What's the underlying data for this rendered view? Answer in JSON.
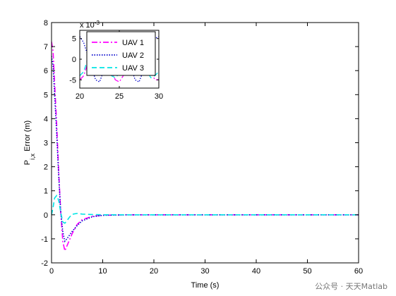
{
  "chart_data": [
    {
      "type": "line",
      "title": "",
      "xlabel": "Time (s)",
      "ylabel_main": "P",
      "ylabel_sub": "i,x",
      "ylabel_rest": " Error (m)",
      "xlim": [
        0,
        60
      ],
      "ylim": [
        -2,
        8
      ],
      "xticks": [
        0,
        10,
        20,
        30,
        40,
        50,
        60
      ],
      "yticks": [
        -2,
        -1,
        0,
        1,
        2,
        3,
        4,
        5,
        6,
        7,
        8
      ],
      "grid": false,
      "series": [
        {
          "name": "UAV 1",
          "color": "#ff00ff",
          "dash": "dashdot",
          "x": [
            0,
            0.3,
            0.6,
            1,
            1.4,
            1.8,
            2.2,
            2.6,
            3,
            4,
            5,
            6,
            8,
            10,
            15,
            60
          ],
          "y": [
            7.2,
            6.8,
            5.5,
            3.8,
            1.8,
            0.1,
            -1.1,
            -1.5,
            -1.3,
            -0.8,
            -0.4,
            -0.2,
            -0.06,
            -0.02,
            0,
            0
          ]
        },
        {
          "name": "UAV 2",
          "color": "#0000cc",
          "dash": "dotted",
          "x": [
            0,
            0.3,
            0.6,
            1,
            1.4,
            1.8,
            2.2,
            2.6,
            3,
            4,
            5,
            6,
            8,
            10,
            15,
            60
          ],
          "y": [
            6.6,
            6.2,
            5.0,
            3.4,
            1.6,
            0.1,
            -0.7,
            -1.1,
            -1.0,
            -0.7,
            -0.45,
            -0.25,
            -0.08,
            -0.02,
            0,
            0
          ]
        },
        {
          "name": "UAV 3",
          "color": "#00e5e5",
          "dash": "dashed",
          "x": [
            0,
            0.3,
            0.6,
            1,
            1.4,
            1.8,
            2.2,
            2.6,
            3,
            3.5,
            4,
            5,
            6,
            8,
            10,
            60
          ],
          "y": [
            0,
            0.3,
            0.7,
            0.8,
            0.6,
            0.1,
            -0.3,
            -0.35,
            -0.25,
            -0.1,
            0.02,
            0.06,
            0.03,
            0.01,
            0,
            0
          ]
        }
      ],
      "legend_position": "inside-inset"
    },
    {
      "type": "line",
      "title": "",
      "xlim": [
        20,
        30
      ],
      "ylim": [
        -7,
        7
      ],
      "xticks": [
        20,
        25,
        30
      ],
      "yticks": [
        -5,
        0,
        5
      ],
      "exponent_label": "x 10",
      "exponent_power": "-3",
      "grid": false,
      "series": [
        {
          "name": "UAV 1",
          "x": [
            20,
            20.5,
            21,
            21.5,
            22,
            22.5,
            23,
            23.5,
            24,
            24.5,
            25,
            25.5,
            26,
            26.5,
            27,
            27.5,
            28,
            28.5,
            29,
            29.5,
            30
          ],
          "y": [
            -5,
            -4,
            -1,
            2,
            4.8,
            5,
            3,
            0,
            -3,
            -5,
            -5.5,
            -4,
            -1,
            2,
            4.8,
            5,
            3,
            0,
            -3,
            -5,
            -5
          ]
        },
        {
          "name": "UAV 2",
          "x": [
            20,
            20.5,
            21,
            21.5,
            22,
            22.5,
            23,
            23.5,
            24,
            24.5,
            25,
            25.5,
            26,
            26.5,
            27,
            27.5,
            28,
            28.5,
            29,
            29.5,
            30
          ],
          "y": [
            5.5,
            4,
            1,
            -2,
            -5,
            -5.5,
            -3,
            0,
            3,
            5,
            5.5,
            4,
            1,
            -2,
            -5,
            -5.5,
            -3,
            0,
            3,
            5,
            5.5
          ]
        },
        {
          "name": "UAV 3",
          "x": [
            20,
            20.5,
            21,
            21.5,
            22,
            22.5,
            23,
            23.5,
            24,
            24.5,
            25,
            25.5,
            26,
            26.5,
            27,
            27.5,
            28,
            28.5,
            29,
            29.5,
            30
          ],
          "y": [
            -4,
            -3,
            0,
            3,
            4.5,
            4,
            1.5,
            -1.5,
            -4,
            -4.5,
            -3.5,
            -1,
            2,
            4,
            4.5,
            3,
            0,
            -3,
            -4.5,
            -4,
            -3
          ]
        }
      ]
    }
  ],
  "watermark": "公众号 · 天天Matlab"
}
